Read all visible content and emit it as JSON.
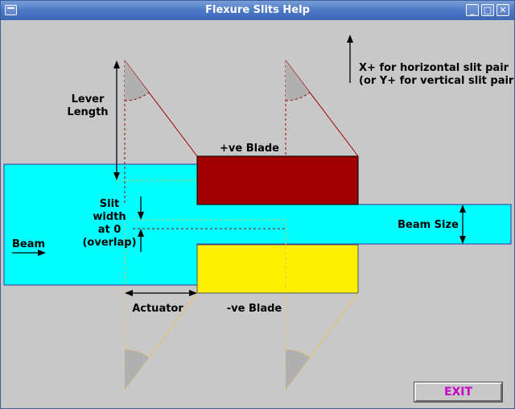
{
  "window": {
    "title": "Flexure Slits Help",
    "controls": [
      "minimize-icon",
      "maximize-icon",
      "close-icon"
    ]
  },
  "diagram": {
    "lever_length_line1": "Lever",
    "lever_length_line2": "Length",
    "pos_blade": "+ve Blade",
    "neg_blade": "-ve Blade",
    "slit_width_line1": "Slit",
    "slit_width_line2": "width",
    "slit_width_line3": "at 0",
    "slit_width_line4": "(overlap)",
    "beam": "Beam",
    "beam_size": "Beam Size",
    "actuator": "Actuator",
    "axis_line1": "X+ for horizontal slit pair",
    "axis_line2": "(or Y+ for vertical slit pair)"
  },
  "colors": {
    "beam": "#00ffff",
    "positive_blade": "#a00000",
    "negative_blade": "#ffef00",
    "lever_positive": "#a00000",
    "lever_negative": "#e8c050",
    "exit_text": "#c800c8"
  },
  "buttons": {
    "exit": "EXIT"
  }
}
